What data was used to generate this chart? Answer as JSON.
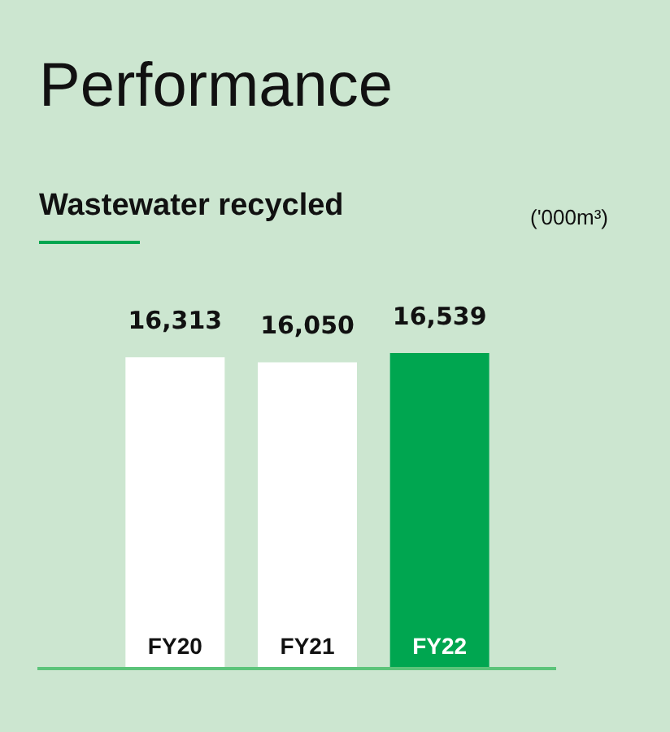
{
  "chart_data": {
    "type": "bar",
    "title": "Performance",
    "subtitle": "Wastewater recycled",
    "annotations": [
      "('000m³)"
    ],
    "categories": [
      "FY20",
      "FY21",
      "FY22"
    ],
    "values": [
      16313,
      16050,
      16539
    ],
    "value_labels": [
      "16,313",
      "16,050",
      "16,539"
    ],
    "colors": [
      "#ffffff",
      "#ffffff",
      "#00a650"
    ]
  }
}
